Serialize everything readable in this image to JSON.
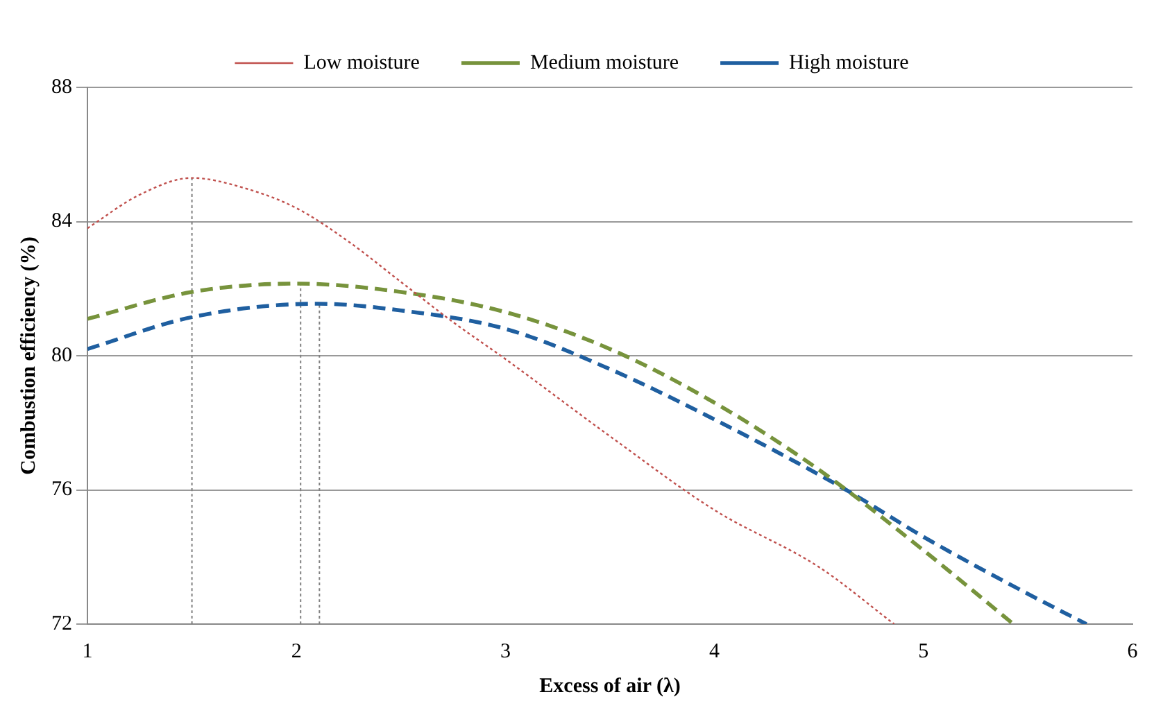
{
  "chart_data": {
    "type": "line",
    "xlabel": "Excess of air (λ)",
    "ylabel": "Combustion efficiency (%)",
    "xlim": [
      1,
      6
    ],
    "xticks": [
      1,
      2,
      3,
      4,
      5,
      6
    ],
    "ylim": [
      72,
      88
    ],
    "yticks": [
      72,
      76,
      80,
      84,
      88
    ],
    "grid": "y",
    "legend": "top",
    "marker": "none",
    "series": [
      {
        "name": "Low moisture",
        "color": "#c0504d",
        "line_style": "dotted",
        "x": [
          1,
          1.25,
          1.5,
          1.75,
          2,
          2.25,
          2.5,
          2.75,
          3,
          3.5,
          4,
          4.5,
          4.86
        ],
        "values": [
          83.8,
          84.8,
          85.3,
          85.0,
          84.4,
          83.4,
          82.2,
          81.0,
          79.9,
          77.6,
          75.4,
          73.7,
          72
        ]
      },
      {
        "name": "Medium moisture",
        "color": "#77933c",
        "line_style": "dashed",
        "x": [
          1,
          1.5,
          2,
          2.5,
          3,
          3.5,
          4,
          4.5,
          5,
          5.43
        ],
        "values": [
          81.1,
          81.9,
          82.15,
          81.9,
          81.3,
          80.2,
          78.6,
          76.6,
          74.2,
          72
        ]
      },
      {
        "name": "High moisture",
        "color": "#1f5fa0",
        "line_style": "dashed",
        "x": [
          1,
          1.5,
          2.1,
          2.5,
          3,
          3.5,
          4,
          4.63,
          5,
          5.5,
          5.78
        ],
        "values": [
          80.2,
          81.15,
          81.55,
          81.35,
          80.8,
          79.6,
          78.1,
          76.0,
          74.6,
          72.9,
          72
        ]
      },
      {
        "color": "#808080",
        "line_style": "dotted",
        "x": [
          1.5,
          1.5
        ],
        "values": [
          72,
          85.3
        ]
      },
      {
        "color": "#808080",
        "line_style": "dotted",
        "x": [
          2.02,
          2.02
        ],
        "values": [
          72,
          82.15
        ]
      },
      {
        "color": "#808080",
        "line_style": "dotted",
        "x": [
          2.11,
          2.11
        ],
        "values": [
          72,
          81.55
        ]
      }
    ]
  }
}
